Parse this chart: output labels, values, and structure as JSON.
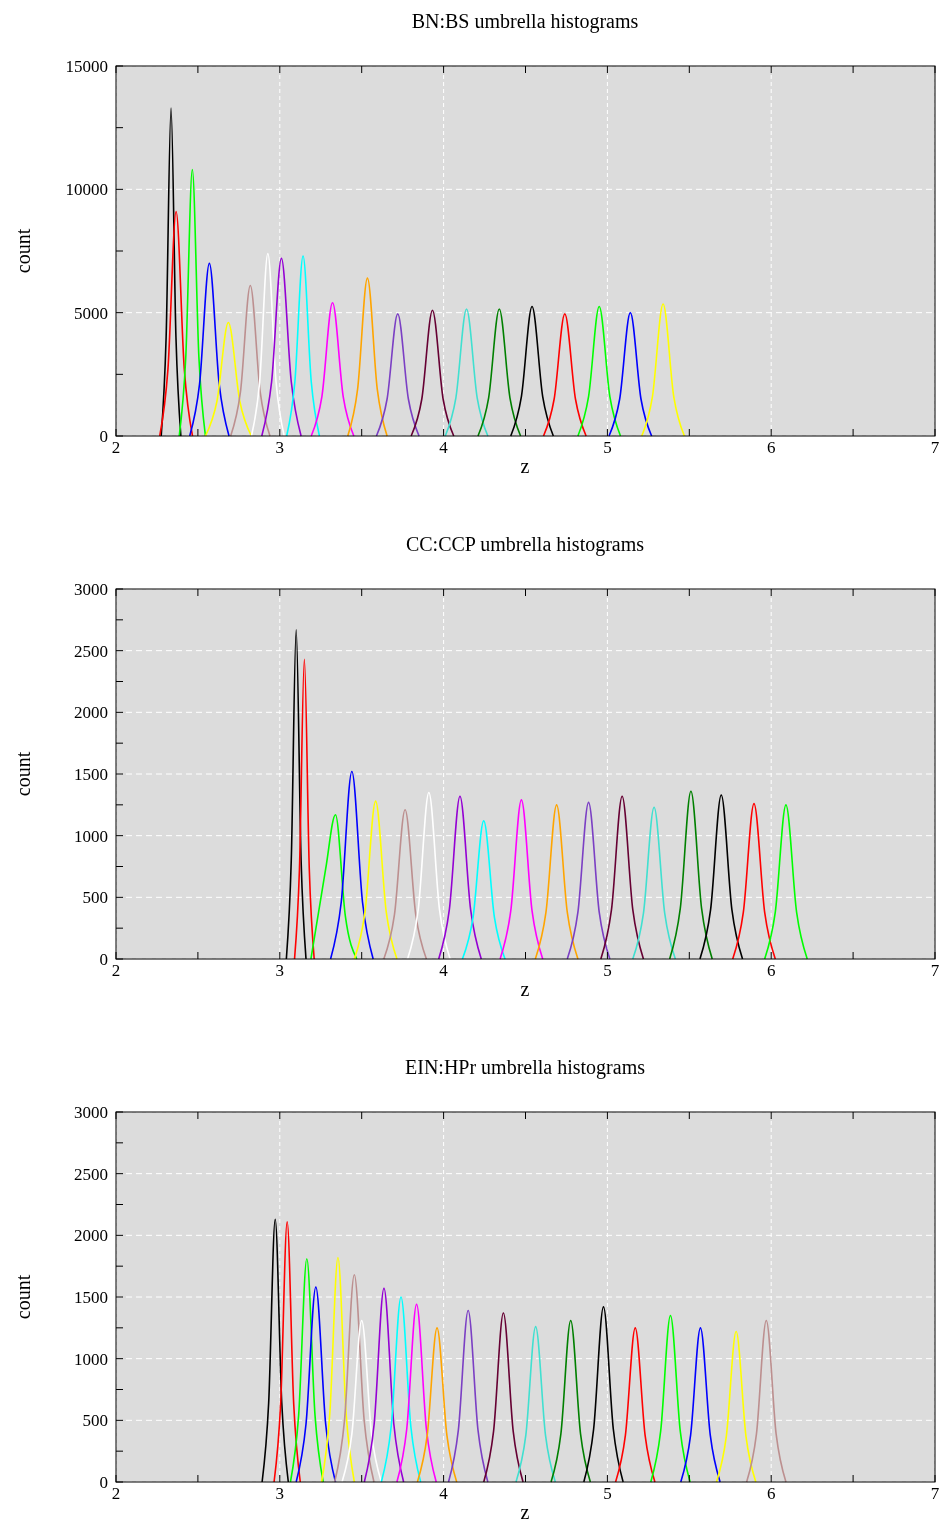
{
  "chart_data": [
    {
      "type": "line",
      "title": "BN:BS umbrella histograms",
      "xlabel": "z",
      "ylabel": "count",
      "xlim": [
        2,
        7
      ],
      "ylim": [
        0,
        15000
      ],
      "xticks": [
        2,
        {
          "value": 2.5,
          "label": null
        },
        3,
        {
          "value": 3.5,
          "label": null
        },
        4,
        {
          "value": 4.5,
          "label": null
        },
        5,
        {
          "value": 5.5,
          "label": null
        },
        6,
        {
          "value": 6.5,
          "label": null
        },
        7
      ],
      "yticks": [
        0,
        {
          "value": 2500,
          "label": null
        },
        5000,
        {
          "value": 7500,
          "label": null
        },
        10000,
        {
          "value": 12500,
          "label": null
        },
        15000
      ],
      "grid": true,
      "series": [
        {
          "color": "#000000",
          "x": [
            2.276,
            2.306,
            2.336,
            2.366,
            2.396
          ],
          "values": [
            0,
            4000,
            13300,
            4000,
            0
          ]
        },
        {
          "color": "#ff0000",
          "x": [
            2.267,
            2.317,
            2.367,
            2.417,
            2.467
          ],
          "values": [
            0,
            2700,
            9100,
            2700,
            0
          ]
        },
        {
          "color": "#00ff00",
          "x": [
            2.386,
            2.426,
            2.466,
            2.506,
            2.546
          ],
          "values": [
            0,
            3200,
            10800,
            3200,
            0
          ]
        },
        {
          "color": "#0000ff",
          "x": [
            2.45,
            2.51,
            2.57,
            2.63,
            2.69
          ],
          "values": [
            0,
            2100,
            7000,
            2100,
            0
          ]
        },
        {
          "color": "#ffff00",
          "x": [
            2.546,
            2.616,
            2.686,
            2.756,
            2.826
          ],
          "values": [
            0,
            1400,
            4600,
            1400,
            0
          ]
        },
        {
          "color": "#bc8f8f",
          "x": [
            2.7,
            2.76,
            2.82,
            2.88,
            2.94
          ],
          "values": [
            0,
            1800,
            6100,
            1800,
            0
          ]
        },
        {
          "color": "#ffffff",
          "x": [
            2.827,
            2.877,
            2.927,
            2.977,
            3.027
          ],
          "values": [
            0,
            2200,
            7400,
            2200,
            0
          ]
        },
        {
          "color": "#9400d3",
          "x": [
            2.89,
            2.95,
            3.01,
            3.07,
            3.13
          ],
          "values": [
            0,
            2200,
            7200,
            2200,
            0
          ]
        },
        {
          "color": "#00ffff",
          "x": [
            3.042,
            3.092,
            3.142,
            3.192,
            3.242
          ],
          "values": [
            0,
            2200,
            7300,
            2200,
            0
          ]
        },
        {
          "color": "#ff00ff",
          "x": [
            3.192,
            3.257,
            3.322,
            3.387,
            3.452
          ],
          "values": [
            0,
            1600,
            5400,
            1600,
            0
          ]
        },
        {
          "color": "#ffa500",
          "x": [
            3.415,
            3.475,
            3.535,
            3.595,
            3.655
          ],
          "values": [
            0,
            1900,
            6400,
            1900,
            0
          ]
        },
        {
          "color": "#7b3fc4",
          "x": [
            3.59,
            3.655,
            3.72,
            3.785,
            3.85
          ],
          "values": [
            0,
            1500,
            4950,
            1500,
            0
          ]
        },
        {
          "color": "#660033",
          "x": [
            3.802,
            3.867,
            3.932,
            3.997,
            4.062
          ],
          "values": [
            0,
            1500,
            5100,
            1500,
            0
          ]
        },
        {
          "color": "#40e0d0",
          "x": [
            4.01,
            4.075,
            4.14,
            4.205,
            4.27
          ],
          "values": [
            0,
            1550,
            5150,
            1550,
            0
          ]
        },
        {
          "color": "#008000",
          "x": [
            4.21,
            4.275,
            4.34,
            4.405,
            4.47
          ],
          "values": [
            0,
            1550,
            5150,
            1550,
            0
          ]
        },
        {
          "color": "#000000",
          "x": [
            4.41,
            4.475,
            4.54,
            4.605,
            4.67
          ],
          "values": [
            0,
            1600,
            5250,
            1600,
            0
          ]
        },
        {
          "color": "#ff0000",
          "x": [
            4.61,
            4.675,
            4.74,
            4.805,
            4.87
          ],
          "values": [
            0,
            1500,
            4950,
            1500,
            0
          ]
        },
        {
          "color": "#00ff00",
          "x": [
            4.82,
            4.885,
            4.95,
            5.015,
            5.08
          ],
          "values": [
            0,
            1600,
            5250,
            1600,
            0
          ]
        },
        {
          "color": "#0000ff",
          "x": [
            5.01,
            5.075,
            5.14,
            5.205,
            5.27
          ],
          "values": [
            0,
            1500,
            5000,
            1500,
            0
          ]
        },
        {
          "color": "#ffff00",
          "x": [
            5.21,
            5.275,
            5.34,
            5.405,
            5.47
          ],
          "values": [
            0,
            1600,
            5350,
            1600,
            0
          ]
        }
      ]
    },
    {
      "type": "line",
      "title": "CC:CCP umbrella histograms",
      "xlabel": "z",
      "ylabel": "count",
      "xlim": [
        2,
        7
      ],
      "ylim": [
        0,
        3000
      ],
      "xticks": [
        2,
        {
          "value": 2.5,
          "label": null
        },
        3,
        {
          "value": 3.5,
          "label": null
        },
        4,
        {
          "value": 4.5,
          "label": null
        },
        5,
        {
          "value": 5.5,
          "label": null
        },
        6,
        {
          "value": 6.5,
          "label": null
        },
        7
      ],
      "yticks": [
        0,
        {
          "value": 250,
          "label": null
        },
        500,
        {
          "value": 750,
          "label": null
        },
        1000,
        {
          "value": 1250,
          "label": null
        },
        1500,
        {
          "value": 1750,
          "label": null
        },
        2000,
        {
          "value": 2250,
          "label": null
        },
        2500,
        {
          "value": 2750,
          "label": null
        },
        3000
      ],
      "grid": true,
      "series": [
        {
          "color": "#000000",
          "x": [
            3.04,
            3.07,
            3.1,
            3.13,
            3.16
          ],
          "values": [
            0,
            800,
            2670,
            800,
            0
          ]
        },
        {
          "color": "#ff0000",
          "x": [
            3.09,
            3.12,
            3.15,
            3.18,
            3.21
          ],
          "values": [
            0,
            730,
            2430,
            730,
            0
          ]
        },
        {
          "color": "#00ff00",
          "x": [
            3.19,
            3.28,
            3.34,
            3.4,
            3.47
          ],
          "values": [
            0,
            730,
            1170,
            350,
            0
          ]
        },
        {
          "color": "#0000ff",
          "x": [
            3.31,
            3.375,
            3.44,
            3.505,
            3.57
          ],
          "values": [
            0,
            460,
            1520,
            460,
            0
          ]
        },
        {
          "color": "#ffff00",
          "x": [
            3.455,
            3.52,
            3.585,
            3.65,
            3.715
          ],
          "values": [
            0,
            380,
            1280,
            380,
            0
          ]
        },
        {
          "color": "#bc8f8f",
          "x": [
            3.635,
            3.7,
            3.765,
            3.83,
            3.895
          ],
          "values": [
            0,
            360,
            1210,
            360,
            0
          ]
        },
        {
          "color": "#ffffff",
          "x": [
            3.78,
            3.845,
            3.91,
            3.975,
            4.04
          ],
          "values": [
            0,
            400,
            1350,
            400,
            0
          ]
        },
        {
          "color": "#9400d3",
          "x": [
            3.97,
            4.035,
            4.1,
            4.165,
            4.23
          ],
          "values": [
            0,
            400,
            1320,
            400,
            0
          ]
        },
        {
          "color": "#00ffff",
          "x": [
            4.115,
            4.18,
            4.245,
            4.31,
            4.375
          ],
          "values": [
            0,
            340,
            1120,
            340,
            0
          ]
        },
        {
          "color": "#ff00ff",
          "x": [
            4.345,
            4.41,
            4.475,
            4.54,
            4.605
          ],
          "values": [
            0,
            390,
            1290,
            390,
            0
          ]
        },
        {
          "color": "#ffa500",
          "x": [
            4.56,
            4.625,
            4.69,
            4.755,
            4.82
          ],
          "values": [
            0,
            380,
            1250,
            380,
            0
          ]
        },
        {
          "color": "#7b3fc4",
          "x": [
            4.755,
            4.82,
            4.885,
            4.95,
            5.015
          ],
          "values": [
            0,
            380,
            1270,
            380,
            0
          ]
        },
        {
          "color": "#660033",
          "x": [
            4.96,
            5.025,
            5.09,
            5.155,
            5.22
          ],
          "values": [
            0,
            400,
            1320,
            400,
            0
          ]
        },
        {
          "color": "#40e0d0",
          "x": [
            5.155,
            5.22,
            5.285,
            5.35,
            5.415
          ],
          "values": [
            0,
            370,
            1230,
            370,
            0
          ]
        },
        {
          "color": "#008000",
          "x": [
            5.38,
            5.445,
            5.51,
            5.575,
            5.64
          ],
          "values": [
            0,
            410,
            1360,
            410,
            0
          ]
        },
        {
          "color": "#000000",
          "x": [
            5.565,
            5.63,
            5.695,
            5.76,
            5.825
          ],
          "values": [
            0,
            400,
            1330,
            400,
            0
          ]
        },
        {
          "color": "#ff0000",
          "x": [
            5.765,
            5.83,
            5.895,
            5.96,
            6.025
          ],
          "values": [
            0,
            380,
            1260,
            380,
            0
          ]
        },
        {
          "color": "#00ff00",
          "x": [
            5.96,
            6.025,
            6.09,
            6.155,
            6.22
          ],
          "values": [
            0,
            380,
            1250,
            380,
            0
          ]
        }
      ]
    },
    {
      "type": "line",
      "title": "EIN:HPr umbrella histograms",
      "xlabel": "z",
      "ylabel": "count",
      "xlim": [
        2,
        7
      ],
      "ylim": [
        0,
        3000
      ],
      "xticks": [
        2,
        {
          "value": 2.5,
          "label": null
        },
        3,
        {
          "value": 3.5,
          "label": null
        },
        4,
        {
          "value": 4.5,
          "label": null
        },
        5,
        {
          "value": 5.5,
          "label": null
        },
        6,
        {
          "value": 6.5,
          "label": null
        },
        7
      ],
      "yticks": [
        0,
        {
          "value": 250,
          "label": null
        },
        500,
        {
          "value": 750,
          "label": null
        },
        1000,
        {
          "value": 1250,
          "label": null
        },
        1500,
        {
          "value": 1750,
          "label": null
        },
        2000,
        {
          "value": 2250,
          "label": null
        },
        2500,
        {
          "value": 2750,
          "label": null
        },
        3000
      ],
      "grid": true,
      "series": [
        {
          "color": "#000000",
          "x": [
            2.892,
            2.932,
            2.972,
            3.012,
            3.052
          ],
          "values": [
            0,
            640,
            2130,
            640,
            0
          ]
        },
        {
          "color": "#ff0000",
          "x": [
            2.965,
            3.005,
            3.045,
            3.085,
            3.125
          ],
          "values": [
            0,
            630,
            2110,
            630,
            0
          ]
        },
        {
          "color": "#00ff00",
          "x": [
            3.065,
            3.115,
            3.165,
            3.215,
            3.265
          ],
          "values": [
            0,
            540,
            1810,
            540,
            0
          ]
        },
        {
          "color": "#0000ff",
          "x": [
            3.1,
            3.16,
            3.22,
            3.28,
            3.34
          ],
          "values": [
            0,
            470,
            1580,
            470,
            0
          ]
        },
        {
          "color": "#ffff00",
          "x": [
            3.255,
            3.305,
            3.355,
            3.405,
            3.455
          ],
          "values": [
            0,
            550,
            1820,
            550,
            0
          ]
        },
        {
          "color": "#bc8f8f",
          "x": [
            3.335,
            3.395,
            3.455,
            3.515,
            3.575
          ],
          "values": [
            0,
            500,
            1680,
            500,
            0
          ]
        },
        {
          "color": "#ffffff",
          "x": [
            3.38,
            3.44,
            3.5,
            3.56,
            3.62
          ],
          "values": [
            0,
            390,
            1310,
            390,
            0
          ]
        },
        {
          "color": "#9400d3",
          "x": [
            3.516,
            3.576,
            3.636,
            3.696,
            3.756
          ],
          "values": [
            0,
            470,
            1570,
            470,
            0
          ]
        },
        {
          "color": "#00ffff",
          "x": [
            3.62,
            3.68,
            3.74,
            3.8,
            3.86
          ],
          "values": [
            0,
            450,
            1500,
            450,
            0
          ]
        },
        {
          "color": "#ff00ff",
          "x": [
            3.715,
            3.775,
            3.835,
            3.895,
            3.955
          ],
          "values": [
            0,
            430,
            1440,
            430,
            0
          ]
        },
        {
          "color": "#ffa500",
          "x": [
            3.84,
            3.9,
            3.96,
            4.02,
            4.08
          ],
          "values": [
            0,
            380,
            1250,
            380,
            0
          ]
        },
        {
          "color": "#7b3fc4",
          "x": [
            4.03,
            4.09,
            4.15,
            4.21,
            4.27
          ],
          "values": [
            0,
            420,
            1390,
            420,
            0
          ]
        },
        {
          "color": "#660033",
          "x": [
            4.245,
            4.305,
            4.365,
            4.425,
            4.485
          ],
          "values": [
            0,
            410,
            1370,
            410,
            0
          ]
        },
        {
          "color": "#40e0d0",
          "x": [
            4.442,
            4.502,
            4.562,
            4.622,
            4.682
          ],
          "values": [
            0,
            380,
            1260,
            380,
            0
          ]
        },
        {
          "color": "#008000",
          "x": [
            4.656,
            4.716,
            4.776,
            4.836,
            4.896
          ],
          "values": [
            0,
            390,
            1310,
            390,
            0
          ]
        },
        {
          "color": "#000000",
          "x": [
            4.856,
            4.916,
            4.976,
            5.036,
            5.096
          ],
          "values": [
            0,
            430,
            1420,
            430,
            0
          ]
        },
        {
          "color": "#ff0000",
          "x": [
            5.05,
            5.11,
            5.17,
            5.23,
            5.29
          ],
          "values": [
            0,
            380,
            1250,
            380,
            0
          ]
        },
        {
          "color": "#00ff00",
          "x": [
            5.265,
            5.325,
            5.385,
            5.445,
            5.505
          ],
          "values": [
            0,
            410,
            1350,
            410,
            0
          ]
        },
        {
          "color": "#0000ff",
          "x": [
            5.448,
            5.508,
            5.568,
            5.628,
            5.688
          ],
          "values": [
            0,
            380,
            1250,
            380,
            0
          ]
        },
        {
          "color": "#ffff00",
          "x": [
            5.666,
            5.726,
            5.786,
            5.846,
            5.906
          ],
          "values": [
            0,
            370,
            1220,
            370,
            0
          ]
        },
        {
          "color": "#bc8f8f",
          "x": [
            5.85,
            5.91,
            5.97,
            6.03,
            6.09
          ],
          "values": [
            0,
            390,
            1310,
            390,
            0
          ]
        }
      ]
    }
  ]
}
